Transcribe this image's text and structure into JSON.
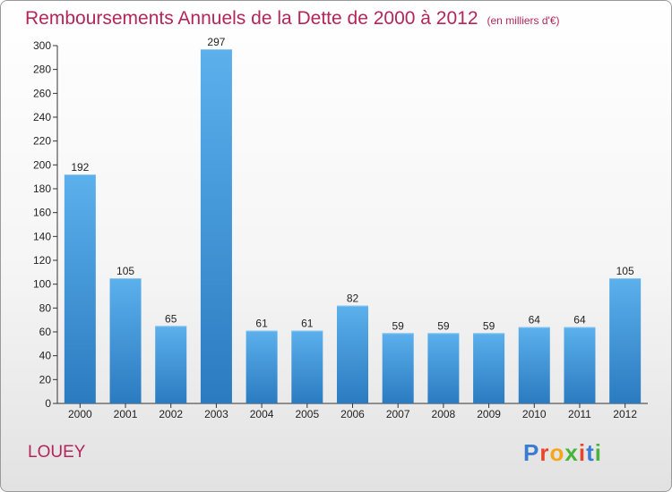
{
  "chart": {
    "title": "Remboursements Annuels de la Dette de 2000 à 2012",
    "subtitle": "(en milliers d'€)",
    "place": "LOUEY",
    "logo": {
      "letters": [
        "P",
        "r",
        "o",
        "x",
        "i",
        "t",
        "i"
      ],
      "colors": [
        "#3a7cd2",
        "#e8442a",
        "#f3a81b",
        "#49b33a",
        "#e8442a",
        "#3a7cd2",
        "#49b33a"
      ]
    }
  },
  "chart_data": {
    "type": "bar",
    "title": "Remboursements Annuels de la Dette de 2000 à 2012",
    "subtitle": "(en milliers d'€)",
    "categories": [
      "2000",
      "2001",
      "2002",
      "2003",
      "2004",
      "2005",
      "2006",
      "2007",
      "2008",
      "2009",
      "2010",
      "2011",
      "2012"
    ],
    "values": [
      192,
      105,
      65,
      297,
      61,
      61,
      82,
      59,
      59,
      59,
      64,
      64,
      105
    ],
    "ylim": [
      0,
      300
    ],
    "yticks": [
      0,
      20,
      40,
      60,
      80,
      100,
      120,
      140,
      160,
      180,
      200,
      220,
      240,
      260,
      280,
      300
    ],
    "grid": false,
    "bar_color": "#4a9fe0",
    "bar_color_dark": "#2a7bc0"
  }
}
